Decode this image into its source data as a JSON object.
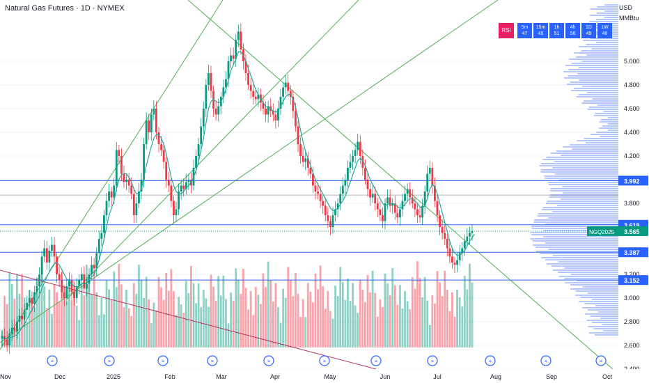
{
  "header": {
    "title": "Natural Gas Futures · 1D · NYMEX",
    "currency": "USD",
    "unit": "MMBtu"
  },
  "timeframes": {
    "rsi_label": "RSI",
    "items": [
      {
        "tf": "5m",
        "value": "47"
      },
      {
        "tf": "15m",
        "value": "49"
      },
      {
        "tf": "1h",
        "value": "51"
      },
      {
        "tf": "4h",
        "value": "56"
      },
      {
        "tf": "1D",
        "value": "49"
      },
      {
        "tf": "1W",
        "value": "46"
      }
    ]
  },
  "colors": {
    "up": "#089981",
    "down": "#f23645",
    "ma": "#26a69a",
    "hline": "#2962ff",
    "trend": "#4caf50",
    "downtrend": "#b2365e",
    "profile": "#2962ff"
  },
  "chart_data": {
    "type": "candlestick",
    "symbol": "NGQ2025",
    "last_price": "3.565",
    "y_ticks": [
      "5.000",
      "4.800",
      "4.600",
      "4.400",
      "4.200",
      "4.000",
      "3.800",
      "3.600",
      "3.400",
      "3.200",
      "3.000",
      "2.800",
      "2.600",
      "2.400"
    ],
    "ylim": [
      2.4,
      5.55
    ],
    "x_ticks": [
      "Nov",
      "Dec",
      "2025",
      "Feb",
      "Mar",
      "Apr",
      "May",
      "Jun",
      "Jul",
      "Aug",
      "Sep",
      "Oct"
    ],
    "price_lines": [
      {
        "value": 3.992,
        "label": "3.992"
      },
      {
        "value": 3.619,
        "label": "3.619"
      },
      {
        "value": 3.387,
        "label": "3.387"
      },
      {
        "value": 3.152,
        "label": "3.152"
      }
    ],
    "close_series": [
      2.68,
      2.65,
      2.6,
      2.7,
      2.75,
      2.72,
      2.8,
      2.85,
      2.82,
      2.9,
      2.96,
      3.0,
      2.95,
      3.05,
      3.1,
      3.2,
      3.35,
      3.42,
      3.3,
      3.4,
      3.45,
      3.35,
      3.2,
      3.15,
      3.05,
      3.0,
      3.1,
      3.15,
      3.05,
      3.0,
      3.1,
      3.15,
      3.2,
      3.08,
      3.12,
      3.2,
      3.28,
      3.25,
      3.38,
      3.5,
      3.55,
      3.7,
      3.82,
      3.9,
      3.85,
      3.95,
      4.25,
      4.2,
      4.05,
      3.98,
      4.0,
      3.95,
      3.88,
      3.7,
      3.8,
      3.9,
      4.0,
      4.3,
      4.5,
      4.4,
      4.55,
      4.6,
      4.4,
      4.3,
      4.25,
      4.15,
      4.0,
      3.95,
      3.82,
      3.7,
      3.75,
      3.9,
      3.95,
      3.92,
      3.98,
      4.0,
      3.95,
      4.1,
      4.2,
      4.3,
      4.45,
      4.6,
      4.8,
      4.9,
      4.75,
      4.6,
      4.55,
      4.62,
      4.7,
      4.78,
      4.85,
      5.0,
      5.05,
      5.02,
      5.18,
      5.25,
      5.1,
      5.0,
      4.9,
      4.8,
      4.75,
      4.7,
      4.68,
      4.72,
      4.65,
      4.6,
      4.55,
      4.62,
      4.58,
      4.55,
      4.5,
      4.6,
      4.7,
      4.78,
      4.82,
      4.75,
      4.7,
      4.58,
      4.45,
      4.3,
      4.2,
      4.15,
      4.18,
      4.1,
      4.05,
      3.95,
      3.9,
      3.88,
      3.82,
      3.78,
      3.7,
      3.65,
      3.6,
      3.7,
      3.75,
      3.8,
      3.88,
      3.95,
      4.0,
      4.1,
      4.15,
      4.2,
      4.25,
      4.32,
      4.2,
      4.1,
      4.0,
      3.92,
      3.85,
      3.88,
      3.8,
      3.75,
      3.7,
      3.65,
      3.8,
      3.85,
      3.78,
      3.8,
      3.72,
      3.68,
      3.75,
      3.82,
      3.88,
      3.92,
      3.85,
      3.8,
      3.75,
      3.7,
      3.68,
      3.78,
      3.9,
      4.05,
      4.1,
      3.95,
      3.82,
      3.7,
      3.6,
      3.55,
      3.5,
      3.42,
      3.35,
      3.3,
      3.28,
      3.32,
      3.38,
      3.42,
      3.48,
      3.52,
      3.55,
      3.565
    ],
    "ma_series": [
      2.66,
      2.66,
      2.66,
      2.66,
      2.67,
      2.68,
      2.69,
      2.72,
      2.75,
      2.78,
      2.82,
      2.86,
      2.9,
      2.94,
      2.98,
      3.02,
      3.08,
      3.13,
      3.18,
      3.22,
      3.26,
      3.29,
      3.3,
      3.28,
      3.24,
      3.2,
      3.16,
      3.14,
      3.12,
      3.1,
      3.09,
      3.1,
      3.12,
      3.12,
      3.13,
      3.15,
      3.18,
      3.2,
      3.25,
      3.32,
      3.4,
      3.5,
      3.6,
      3.7,
      3.76,
      3.82,
      3.92,
      4.0,
      4.04,
      4.05,
      4.05,
      4.02,
      3.98,
      3.92,
      3.88,
      3.88,
      3.92,
      4.02,
      4.12,
      4.2,
      4.28,
      4.35,
      4.38,
      4.38,
      4.35,
      4.3,
      4.22,
      4.12,
      4.02,
      3.95,
      3.9,
      3.88,
      3.88,
      3.9,
      3.93,
      3.95,
      3.98,
      4.02,
      4.08,
      4.15,
      4.25,
      4.35,
      4.48,
      4.6,
      4.66,
      4.68,
      4.66,
      4.65,
      4.66,
      4.7,
      4.76,
      4.84,
      4.92,
      4.97,
      5.02,
      5.08,
      5.08,
      5.05,
      5.0,
      4.94,
      4.88,
      4.82,
      4.76,
      4.72,
      4.68,
      4.65,
      4.62,
      4.61,
      4.6,
      4.58,
      4.57,
      4.58,
      4.62,
      4.66,
      4.7,
      4.72,
      4.72,
      4.68,
      4.62,
      4.52,
      4.42,
      4.32,
      4.24,
      4.18,
      4.12,
      4.06,
      4.0,
      3.96,
      3.92,
      3.88,
      3.84,
      3.8,
      3.76,
      3.74,
      3.74,
      3.76,
      3.79,
      3.82,
      3.86,
      3.92,
      3.98,
      4.04,
      4.1,
      4.16,
      4.18,
      4.16,
      4.12,
      4.06,
      4.0,
      3.96,
      3.92,
      3.88,
      3.84,
      3.8,
      3.78,
      3.79,
      3.8,
      3.8,
      3.79,
      3.77,
      3.76,
      3.77,
      3.79,
      3.82,
      3.84,
      3.84,
      3.82,
      3.8,
      3.77,
      3.76,
      3.78,
      3.84,
      3.92,
      3.96,
      3.94,
      3.88,
      3.8,
      3.72,
      3.64,
      3.56,
      3.48,
      3.42,
      3.38,
      3.36,
      3.36,
      3.38,
      3.4,
      3.44,
      3.48,
      3.51,
      3.54
    ]
  }
}
